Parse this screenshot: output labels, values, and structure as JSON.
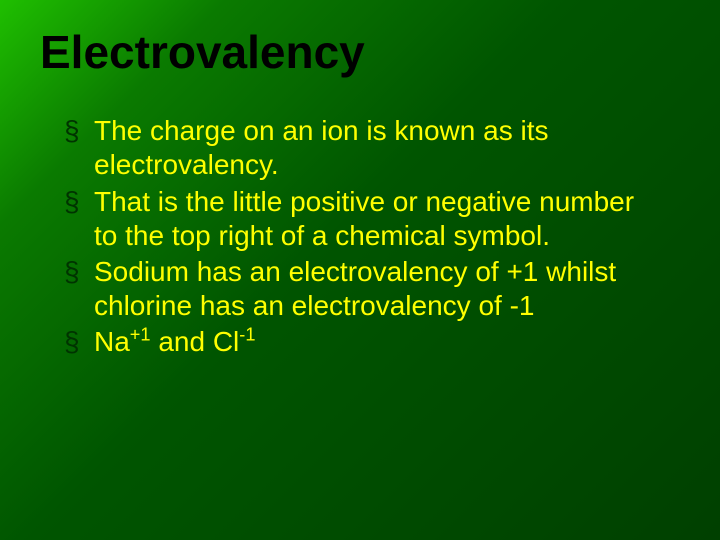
{
  "slide": {
    "background_gradient": [
      "#1fbf00",
      "#0a7a00",
      "#005500",
      "#004000"
    ],
    "title": "Electrovalency",
    "title_color": "#000000",
    "title_fontsize": 46,
    "bullet_color": "#ffff00",
    "bullet_marker_color": "#003300",
    "bullet_fontsize": 28,
    "bullets": [
      "The charge on an ion is known as its electrovalency.",
      "That is the little positive or negative number to the top right of a chemical symbol.",
      "Sodium has an electrovalency of +1 whilst chlorine has an electrovalency of -1",
      ""
    ],
    "bullet4_parts": {
      "na": "Na",
      "na_sup": "+1",
      "and": " and Cl",
      "cl_sup": "-1"
    }
  }
}
